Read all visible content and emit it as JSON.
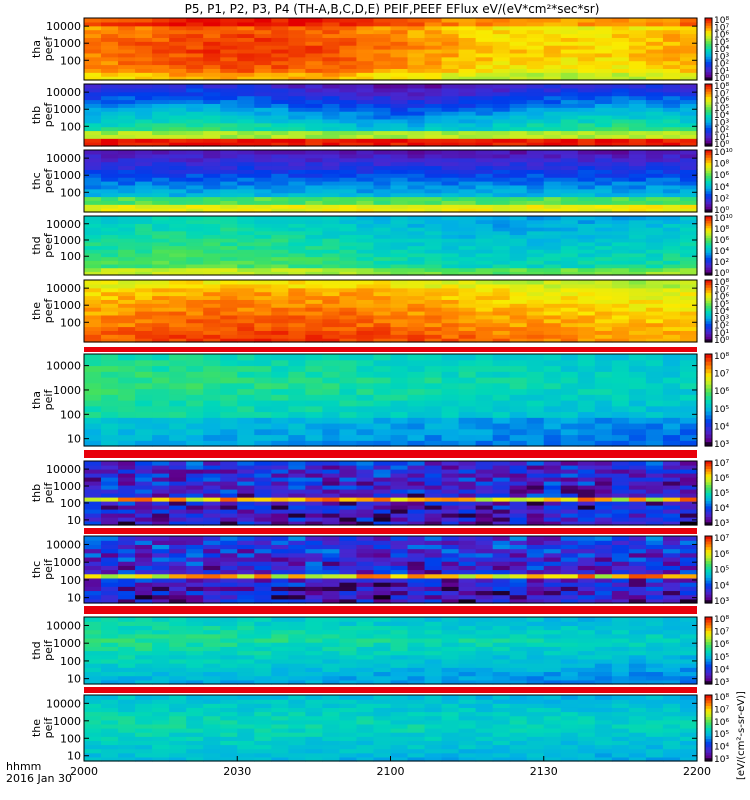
{
  "title": "P5, P1, P2, P3, P4 (TH-A,B,C,D,E) PEIF,PEEF EFlux eV/(eV*cm²*sec*sr)",
  "time_axis": {
    "label_line1": "hhmm",
    "label_line2": "2016 Jan 30",
    "ticks": [
      "2000",
      "2030",
      "2100",
      "2130",
      "2200"
    ]
  },
  "colorbar_unit": "[eV/(cm²-s-sr-eV)]",
  "chart_data": {
    "type": "heatmap",
    "x_range": [
      "20:00",
      "22:00"
    ],
    "y_scale": "log",
    "panels": [
      {
        "label": [
          "tha",
          "peef"
        ],
        "y_ticks": [
          "10000",
          "1000",
          "100"
        ],
        "y_range_eV": [
          7,
          30000
        ],
        "z_ticks": [
          "10⁸",
          "10⁷",
          "10⁶",
          "10⁵",
          "10⁴",
          "10³",
          "10²",
          "10¹",
          "10⁰"
        ],
        "z_range": [
          1,
          100000000
        ],
        "pattern": "peef_a"
      },
      {
        "label": [
          "thb",
          "peef"
        ],
        "y_ticks": [
          "10000",
          "1000",
          "100"
        ],
        "y_range_eV": [
          7,
          30000
        ],
        "z_ticks": [
          "10⁸",
          "10⁷",
          "10⁶",
          "10⁵",
          "10⁴",
          "10³",
          "10²",
          "10¹",
          "10⁰"
        ],
        "z_range": [
          1,
          100000000
        ],
        "pattern": "peef_b"
      },
      {
        "label": [
          "thc",
          "peef"
        ],
        "y_ticks": [
          "10000",
          "1000",
          "100"
        ],
        "y_range_eV": [
          7,
          30000
        ],
        "z_ticks": [
          "10¹⁰",
          "10⁸",
          "10⁶",
          "10⁴",
          "10²",
          "10⁰"
        ],
        "z_range": [
          1,
          10000000000
        ],
        "pattern": "peef_c"
      },
      {
        "label": [
          "thd",
          "peef"
        ],
        "y_ticks": [
          "10000",
          "1000",
          "100"
        ],
        "y_range_eV": [
          7,
          30000
        ],
        "z_ticks": [
          "10¹⁰",
          "10⁸",
          "10⁶",
          "10⁴",
          "10²",
          "10⁰"
        ],
        "z_range": [
          1,
          10000000000
        ],
        "pattern": "peef_d"
      },
      {
        "label": [
          "the",
          "peef"
        ],
        "y_ticks": [
          "10000",
          "1000",
          "100"
        ],
        "y_range_eV": [
          7,
          30000
        ],
        "z_ticks": [
          "10⁸",
          "10⁷",
          "10⁶",
          "10⁵",
          "10⁴",
          "10³",
          "10²",
          "10¹",
          "10⁰"
        ],
        "z_range": [
          1,
          100000000
        ],
        "pattern": "peef_e"
      },
      {
        "label": [
          "tha",
          "peif"
        ],
        "y_ticks": [
          "10000",
          "1000",
          "100",
          "10"
        ],
        "y_range_eV": [
          5,
          30000
        ],
        "z_ticks": [
          "10⁸",
          "10⁷",
          "10⁶",
          "10⁵",
          "10⁴",
          "10³"
        ],
        "z_range": [
          1000,
          100000000
        ],
        "pattern": "peif_a"
      },
      {
        "label": [
          "thb",
          "peif"
        ],
        "y_ticks": [
          "10000",
          "1000",
          "100",
          "10"
        ],
        "y_range_eV": [
          5,
          30000
        ],
        "z_ticks": [
          "10⁷",
          "10⁶",
          "10⁵",
          "10⁴",
          "10³"
        ],
        "z_range": [
          1000,
          10000000
        ],
        "pattern": "peif_b"
      },
      {
        "label": [
          "thc",
          "peif"
        ],
        "y_ticks": [
          "10000",
          "1000",
          "100",
          "10"
        ],
        "y_range_eV": [
          5,
          30000
        ],
        "z_ticks": [
          "10⁷",
          "10⁶",
          "10⁵",
          "10⁴",
          "10³"
        ],
        "z_range": [
          1000,
          10000000
        ],
        "pattern": "peif_c"
      },
      {
        "label": [
          "thd",
          "peif"
        ],
        "y_ticks": [
          "10000",
          "1000",
          "100",
          "10"
        ],
        "y_range_eV": [
          5,
          30000
        ],
        "z_ticks": [
          "10⁸",
          "10⁷",
          "10⁶",
          "10⁵",
          "10⁴",
          "10³"
        ],
        "z_range": [
          1000,
          100000000
        ],
        "pattern": "peif_d"
      },
      {
        "label": [
          "the",
          "peif"
        ],
        "y_ticks": [
          "10000",
          "1000",
          "100",
          "10"
        ],
        "y_range_eV": [
          5,
          30000
        ],
        "z_ticks": [
          "10⁸",
          "10⁷",
          "10⁶",
          "10⁵",
          "10⁴",
          "10³"
        ],
        "z_range": [
          1000,
          100000000
        ],
        "pattern": "peif_e"
      }
    ]
  }
}
